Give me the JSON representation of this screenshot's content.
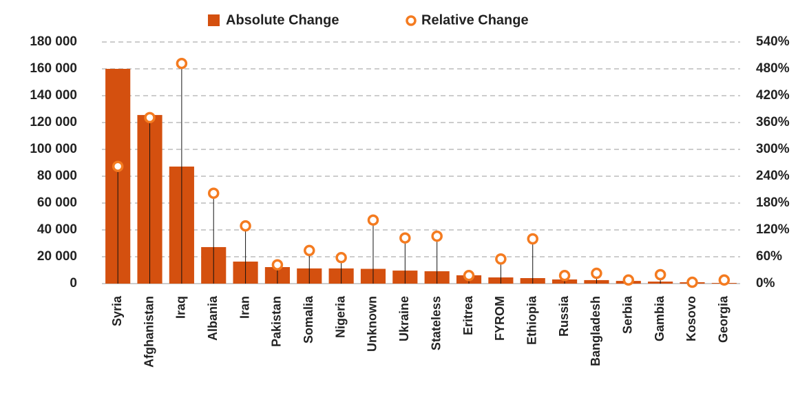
{
  "chart_data": {
    "type": "bar-stem",
    "categories": [
      "Syria",
      "Afghanistan",
      "Iraq",
      "Albania",
      "Iran",
      "Pakistan",
      "Somalia",
      "Nigeria",
      "Unknown",
      "Ukraine",
      "Stateless",
      "Eritrea",
      "FYROM",
      "Ethiopia",
      "Russia",
      "Bangladesh",
      "Serbia",
      "Gambia",
      "Kosovo",
      "Georgia"
    ],
    "series": [
      {
        "name": "Absolute Change",
        "color": "#d4500f",
        "values": [
          160000,
          125600,
          87200,
          27200,
          16400,
          12300,
          11300,
          11300,
          11000,
          9700,
          9200,
          6200,
          4600,
          4100,
          3100,
          2600,
          2000,
          1500,
          1000,
          500
        ]
      },
      {
        "name": "Relative Change",
        "color": "#f47b20",
        "axis": "y2",
        "values": [
          262,
          371,
          492,
          202,
          129,
          42,
          74,
          58,
          142,
          102,
          106,
          18,
          55,
          100,
          18,
          23,
          8,
          20,
          3,
          8
        ]
      }
    ],
    "ylim": [
      0,
      180000
    ],
    "yticks": [
      0,
      {
        "value": 20000,
        "label": "20 000"
      },
      {
        "value": 40000,
        "label": "40 000"
      },
      {
        "value": 60000,
        "label": "60 000"
      },
      {
        "value": 80000,
        "label": "80 000"
      },
      {
        "value": 100000,
        "label": "100 000"
      },
      {
        "value": 120000,
        "label": "120 000"
      },
      {
        "value": 140000,
        "label": "140 000"
      },
      {
        "value": 160000,
        "label": "160 000"
      },
      {
        "value": 180000,
        "label": "180 000"
      }
    ],
    "y2lim": [
      0,
      540
    ],
    "y2ticks": [
      {
        "value": 0,
        "label": "0%"
      },
      {
        "value": 60,
        "label": "60%"
      },
      {
        "value": 120,
        "label": "120%"
      },
      {
        "value": 180,
        "label": "180%"
      },
      {
        "value": 240,
        "label": "240%"
      },
      {
        "value": 300,
        "label": "300%"
      },
      {
        "value": 360,
        "label": "360%"
      },
      {
        "value": 420,
        "label": "420%"
      },
      {
        "value": 480,
        "label": "480%"
      },
      {
        "value": 540,
        "label": "540%"
      }
    ],
    "grid": true,
    "legend": "top"
  }
}
